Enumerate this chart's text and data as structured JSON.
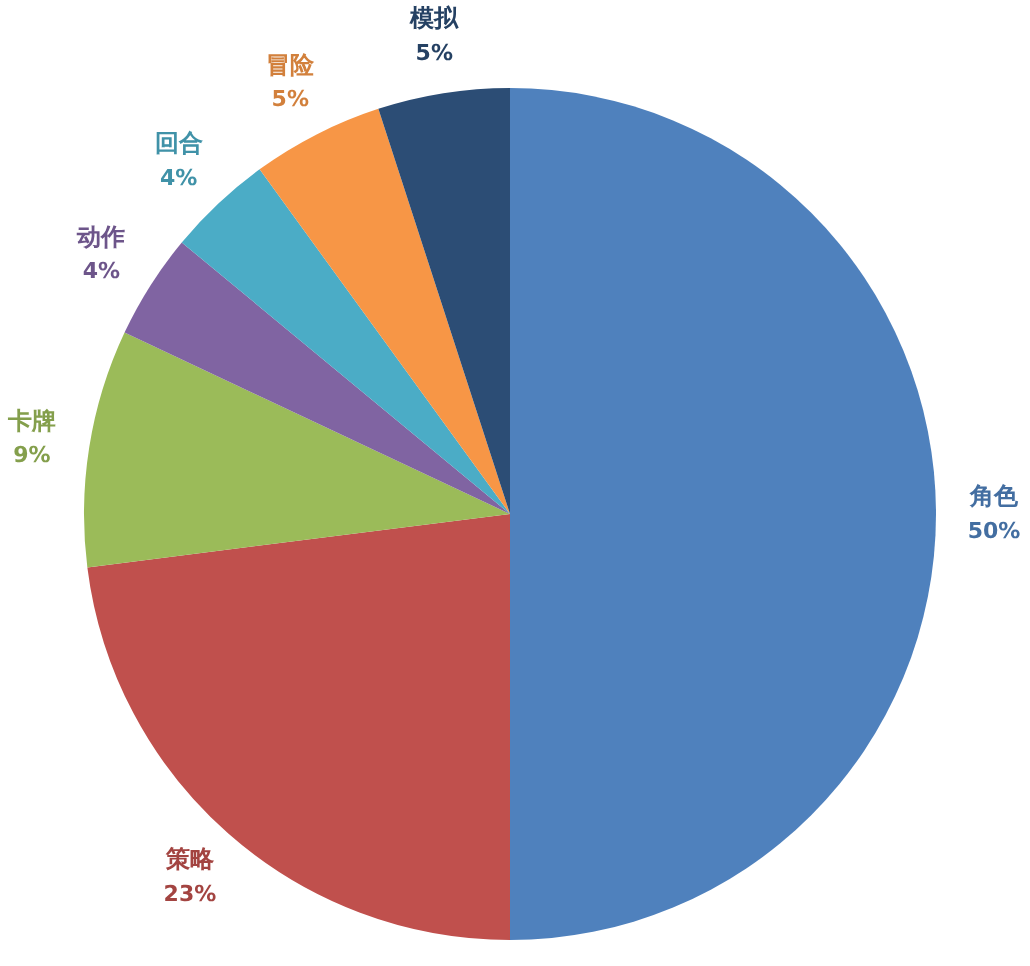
{
  "chart_data": {
    "type": "pie",
    "categories": [
      "角色",
      "策略",
      "卡牌",
      "动作",
      "回合",
      "冒险",
      "模拟"
    ],
    "values": [
      50,
      23,
      9,
      4,
      4,
      5,
      5
    ],
    "value_labels": [
      "50%",
      "23%",
      "9%",
      "4%",
      "4%",
      "5%",
      "5%"
    ],
    "colors": [
      "#4f81bd",
      "#c0504d",
      "#9bbb59",
      "#8064a2",
      "#4bacc6",
      "#f79646",
      "#2c4d75"
    ]
  }
}
